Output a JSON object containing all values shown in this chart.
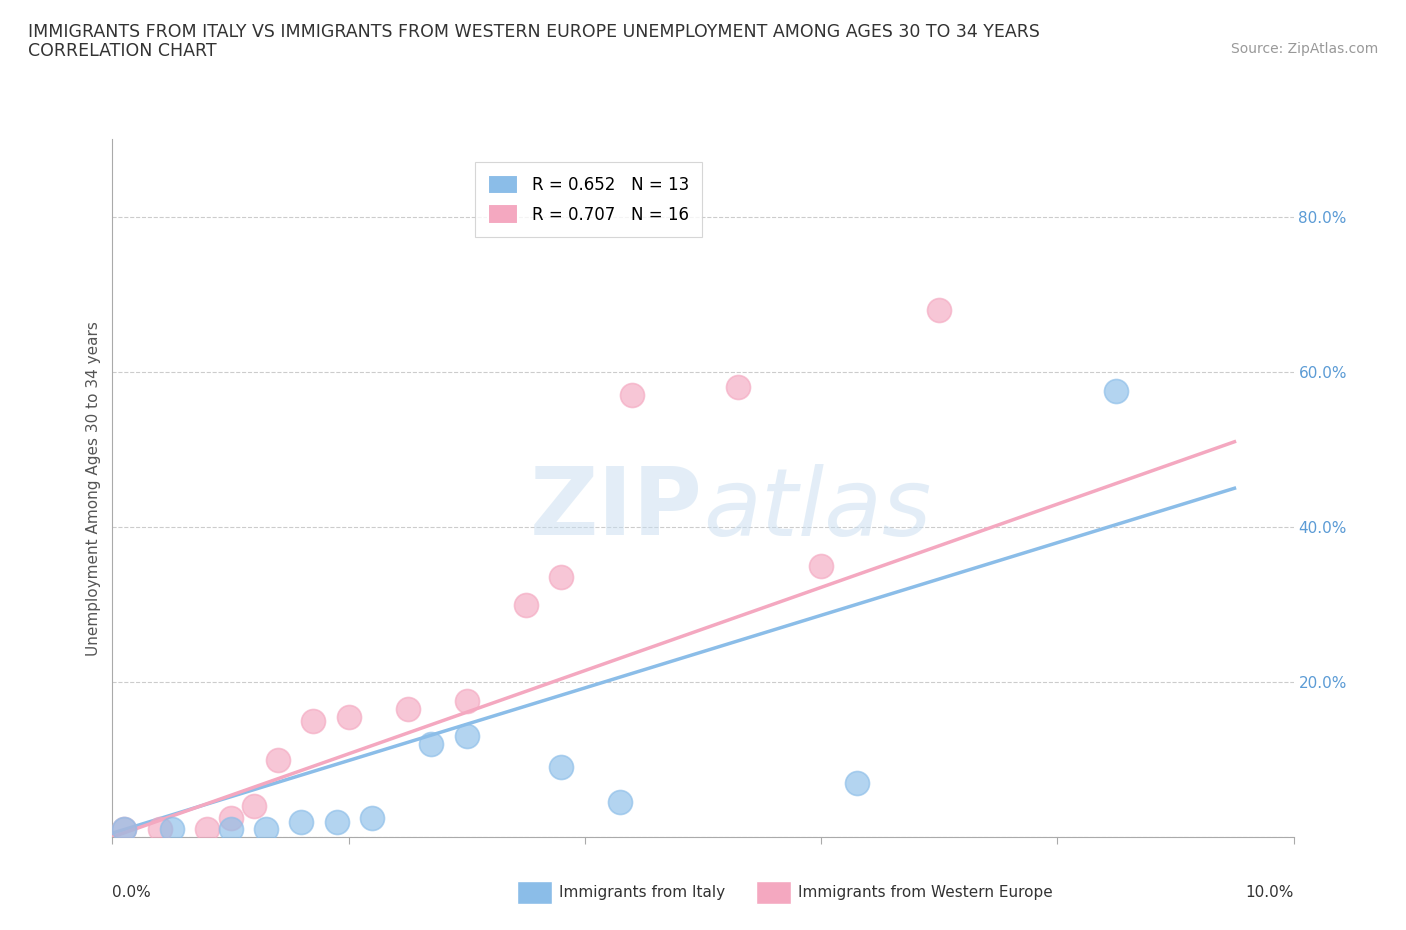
{
  "title_line1": "IMMIGRANTS FROM ITALY VS IMMIGRANTS FROM WESTERN EUROPE UNEMPLOYMENT AMONG AGES 30 TO 34 YEARS",
  "title_line2": "CORRELATION CHART",
  "source_text": "Source: ZipAtlas.com",
  "ylabel": "Unemployment Among Ages 30 to 34 years",
  "xlim": [
    0.0,
    0.1
  ],
  "ylim": [
    0.0,
    0.9
  ],
  "x_ticks": [
    0.0,
    0.02,
    0.04,
    0.06,
    0.08,
    0.1
  ],
  "y_ticks": [
    0.2,
    0.4,
    0.6,
    0.8
  ],
  "y_tick_labels": [
    "20.0%",
    "40.0%",
    "60.0%",
    "80.0%"
  ],
  "x_bottom_left": "0.0%",
  "x_bottom_right": "10.0%",
  "italy_R": 0.652,
  "italy_N": 13,
  "western_R": 0.707,
  "western_N": 16,
  "italy_color": "#8bbde8",
  "western_color": "#f4a8c0",
  "italy_scatter_x": [
    0.001,
    0.005,
    0.01,
    0.013,
    0.016,
    0.019,
    0.022,
    0.027,
    0.03,
    0.038,
    0.043,
    0.063,
    0.085
  ],
  "italy_scatter_y": [
    0.01,
    0.01,
    0.01,
    0.01,
    0.02,
    0.02,
    0.025,
    0.12,
    0.13,
    0.09,
    0.045,
    0.07,
    0.575
  ],
  "western_scatter_x": [
    0.001,
    0.004,
    0.008,
    0.01,
    0.012,
    0.014,
    0.017,
    0.02,
    0.025,
    0.03,
    0.035,
    0.038,
    0.044,
    0.053,
    0.06,
    0.07
  ],
  "western_scatter_y": [
    0.01,
    0.01,
    0.01,
    0.025,
    0.04,
    0.1,
    0.15,
    0.155,
    0.165,
    0.175,
    0.3,
    0.335,
    0.57,
    0.58,
    0.35,
    0.68
  ],
  "italy_line_x": [
    0.0,
    0.095
  ],
  "italy_line_y": [
    0.005,
    0.45
  ],
  "western_line_x": [
    0.0,
    0.095
  ],
  "western_line_y": [
    0.0,
    0.51
  ],
  "watermark_color": "#c8ddf0",
  "watermark_alpha": 0.5,
  "background_color": "#ffffff",
  "grid_color": "#cccccc",
  "legend_italy_label": "Immigrants from Italy",
  "legend_western_label": "Immigrants from Western Europe"
}
